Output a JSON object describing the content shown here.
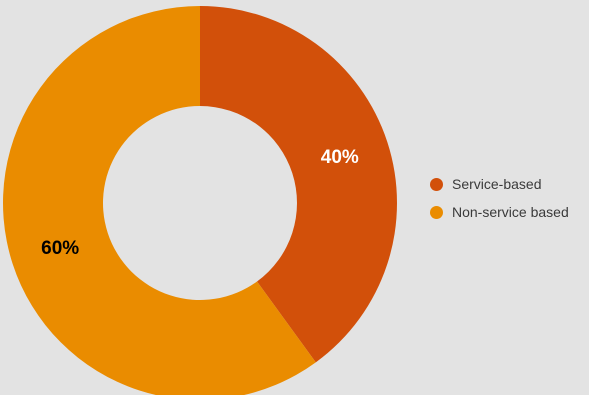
{
  "chart_data": {
    "type": "pie",
    "donut": true,
    "title": "",
    "legend_position": "right",
    "slices": [
      {
        "label": "Service-based",
        "value": 40,
        "display": "40%",
        "color": "#d2500a"
      },
      {
        "label": "Non-service based",
        "value": 60,
        "display": "60%",
        "color": "#ea8c00"
      }
    ],
    "label_color": "#ffffff",
    "label_dark_color": "#000000"
  }
}
